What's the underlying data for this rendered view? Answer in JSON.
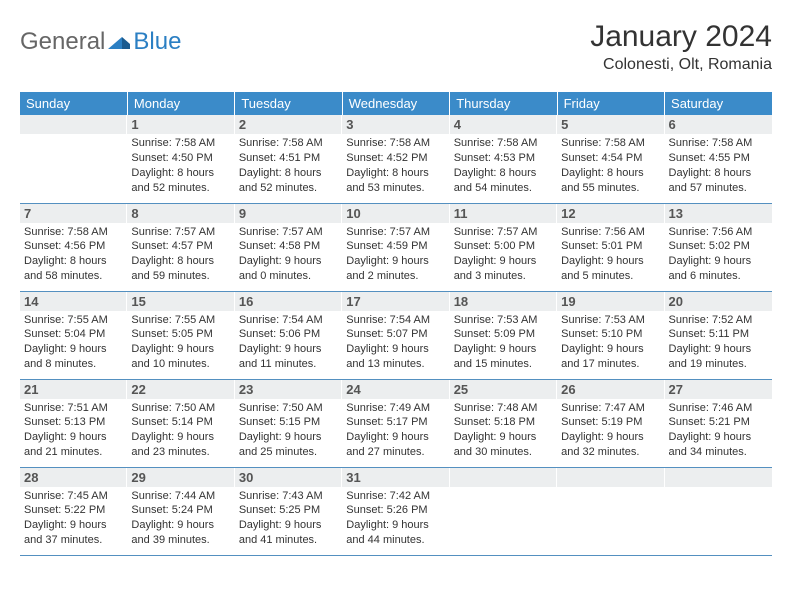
{
  "logo": {
    "text1": "General",
    "text2": "Blue"
  },
  "month_title": "January 2024",
  "location": "Colonesti, Olt, Romania",
  "colors": {
    "header_bg": "#3b8bc9",
    "header_text": "#ffffff",
    "daynum_bg": "#eceeef",
    "border": "#5490c0",
    "logo_blue": "#2b7fc3"
  },
  "weekdays": [
    "Sunday",
    "Monday",
    "Tuesday",
    "Wednesday",
    "Thursday",
    "Friday",
    "Saturday"
  ],
  "weeks": [
    [
      {
        "empty": true
      },
      {
        "num": "1",
        "sunrise": "Sunrise: 7:58 AM",
        "sunset": "Sunset: 4:50 PM",
        "daylight1": "Daylight: 8 hours",
        "daylight2": "and 52 minutes."
      },
      {
        "num": "2",
        "sunrise": "Sunrise: 7:58 AM",
        "sunset": "Sunset: 4:51 PM",
        "daylight1": "Daylight: 8 hours",
        "daylight2": "and 52 minutes."
      },
      {
        "num": "3",
        "sunrise": "Sunrise: 7:58 AM",
        "sunset": "Sunset: 4:52 PM",
        "daylight1": "Daylight: 8 hours",
        "daylight2": "and 53 minutes."
      },
      {
        "num": "4",
        "sunrise": "Sunrise: 7:58 AM",
        "sunset": "Sunset: 4:53 PM",
        "daylight1": "Daylight: 8 hours",
        "daylight2": "and 54 minutes."
      },
      {
        "num": "5",
        "sunrise": "Sunrise: 7:58 AM",
        "sunset": "Sunset: 4:54 PM",
        "daylight1": "Daylight: 8 hours",
        "daylight2": "and 55 minutes."
      },
      {
        "num": "6",
        "sunrise": "Sunrise: 7:58 AM",
        "sunset": "Sunset: 4:55 PM",
        "daylight1": "Daylight: 8 hours",
        "daylight2": "and 57 minutes."
      }
    ],
    [
      {
        "num": "7",
        "sunrise": "Sunrise: 7:58 AM",
        "sunset": "Sunset: 4:56 PM",
        "daylight1": "Daylight: 8 hours",
        "daylight2": "and 58 minutes."
      },
      {
        "num": "8",
        "sunrise": "Sunrise: 7:57 AM",
        "sunset": "Sunset: 4:57 PM",
        "daylight1": "Daylight: 8 hours",
        "daylight2": "and 59 minutes."
      },
      {
        "num": "9",
        "sunrise": "Sunrise: 7:57 AM",
        "sunset": "Sunset: 4:58 PM",
        "daylight1": "Daylight: 9 hours",
        "daylight2": "and 0 minutes."
      },
      {
        "num": "10",
        "sunrise": "Sunrise: 7:57 AM",
        "sunset": "Sunset: 4:59 PM",
        "daylight1": "Daylight: 9 hours",
        "daylight2": "and 2 minutes."
      },
      {
        "num": "11",
        "sunrise": "Sunrise: 7:57 AM",
        "sunset": "Sunset: 5:00 PM",
        "daylight1": "Daylight: 9 hours",
        "daylight2": "and 3 minutes."
      },
      {
        "num": "12",
        "sunrise": "Sunrise: 7:56 AM",
        "sunset": "Sunset: 5:01 PM",
        "daylight1": "Daylight: 9 hours",
        "daylight2": "and 5 minutes."
      },
      {
        "num": "13",
        "sunrise": "Sunrise: 7:56 AM",
        "sunset": "Sunset: 5:02 PM",
        "daylight1": "Daylight: 9 hours",
        "daylight2": "and 6 minutes."
      }
    ],
    [
      {
        "num": "14",
        "sunrise": "Sunrise: 7:55 AM",
        "sunset": "Sunset: 5:04 PM",
        "daylight1": "Daylight: 9 hours",
        "daylight2": "and 8 minutes."
      },
      {
        "num": "15",
        "sunrise": "Sunrise: 7:55 AM",
        "sunset": "Sunset: 5:05 PM",
        "daylight1": "Daylight: 9 hours",
        "daylight2": "and 10 minutes."
      },
      {
        "num": "16",
        "sunrise": "Sunrise: 7:54 AM",
        "sunset": "Sunset: 5:06 PM",
        "daylight1": "Daylight: 9 hours",
        "daylight2": "and 11 minutes."
      },
      {
        "num": "17",
        "sunrise": "Sunrise: 7:54 AM",
        "sunset": "Sunset: 5:07 PM",
        "daylight1": "Daylight: 9 hours",
        "daylight2": "and 13 minutes."
      },
      {
        "num": "18",
        "sunrise": "Sunrise: 7:53 AM",
        "sunset": "Sunset: 5:09 PM",
        "daylight1": "Daylight: 9 hours",
        "daylight2": "and 15 minutes."
      },
      {
        "num": "19",
        "sunrise": "Sunrise: 7:53 AM",
        "sunset": "Sunset: 5:10 PM",
        "daylight1": "Daylight: 9 hours",
        "daylight2": "and 17 minutes."
      },
      {
        "num": "20",
        "sunrise": "Sunrise: 7:52 AM",
        "sunset": "Sunset: 5:11 PM",
        "daylight1": "Daylight: 9 hours",
        "daylight2": "and 19 minutes."
      }
    ],
    [
      {
        "num": "21",
        "sunrise": "Sunrise: 7:51 AM",
        "sunset": "Sunset: 5:13 PM",
        "daylight1": "Daylight: 9 hours",
        "daylight2": "and 21 minutes."
      },
      {
        "num": "22",
        "sunrise": "Sunrise: 7:50 AM",
        "sunset": "Sunset: 5:14 PM",
        "daylight1": "Daylight: 9 hours",
        "daylight2": "and 23 minutes."
      },
      {
        "num": "23",
        "sunrise": "Sunrise: 7:50 AM",
        "sunset": "Sunset: 5:15 PM",
        "daylight1": "Daylight: 9 hours",
        "daylight2": "and 25 minutes."
      },
      {
        "num": "24",
        "sunrise": "Sunrise: 7:49 AM",
        "sunset": "Sunset: 5:17 PM",
        "daylight1": "Daylight: 9 hours",
        "daylight2": "and 27 minutes."
      },
      {
        "num": "25",
        "sunrise": "Sunrise: 7:48 AM",
        "sunset": "Sunset: 5:18 PM",
        "daylight1": "Daylight: 9 hours",
        "daylight2": "and 30 minutes."
      },
      {
        "num": "26",
        "sunrise": "Sunrise: 7:47 AM",
        "sunset": "Sunset: 5:19 PM",
        "daylight1": "Daylight: 9 hours",
        "daylight2": "and 32 minutes."
      },
      {
        "num": "27",
        "sunrise": "Sunrise: 7:46 AM",
        "sunset": "Sunset: 5:21 PM",
        "daylight1": "Daylight: 9 hours",
        "daylight2": "and 34 minutes."
      }
    ],
    [
      {
        "num": "28",
        "sunrise": "Sunrise: 7:45 AM",
        "sunset": "Sunset: 5:22 PM",
        "daylight1": "Daylight: 9 hours",
        "daylight2": "and 37 minutes."
      },
      {
        "num": "29",
        "sunrise": "Sunrise: 7:44 AM",
        "sunset": "Sunset: 5:24 PM",
        "daylight1": "Daylight: 9 hours",
        "daylight2": "and 39 minutes."
      },
      {
        "num": "30",
        "sunrise": "Sunrise: 7:43 AM",
        "sunset": "Sunset: 5:25 PM",
        "daylight1": "Daylight: 9 hours",
        "daylight2": "and 41 minutes."
      },
      {
        "num": "31",
        "sunrise": "Sunrise: 7:42 AM",
        "sunset": "Sunset: 5:26 PM",
        "daylight1": "Daylight: 9 hours",
        "daylight2": "and 44 minutes."
      },
      {
        "empty": true
      },
      {
        "empty": true
      },
      {
        "empty": true
      }
    ]
  ]
}
